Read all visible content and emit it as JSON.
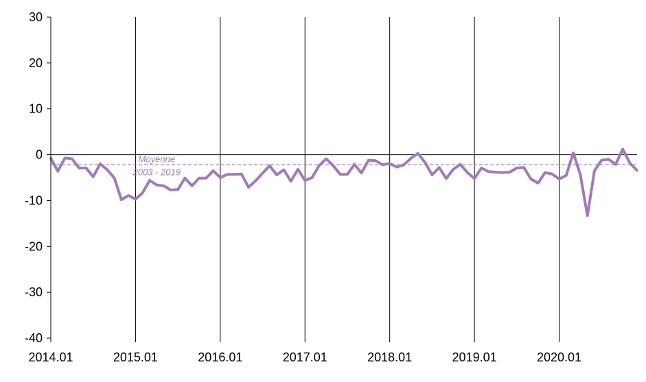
{
  "chart_data": {
    "type": "line",
    "title": "",
    "xlabel": "",
    "ylabel": "",
    "ylim": [
      -40,
      30
    ],
    "yticks": [
      30,
      20,
      10,
      0,
      -10,
      -20,
      -30,
      -40
    ],
    "x_start": "2014.01",
    "x_end": "2020.12",
    "xtick_labels": [
      "2014.01",
      "2015.01",
      "2016.01",
      "2017.01",
      "2018.01",
      "2019.01",
      "2020.01"
    ],
    "grid": "vertical lines at each January",
    "legend": "none",
    "series": [
      {
        "color": "#a17ab9",
        "x": [
          "2014.01",
          "2014.02",
          "2014.03",
          "2014.04",
          "2014.05",
          "2014.06",
          "2014.07",
          "2014.08",
          "2014.09",
          "2014.10",
          "2014.11",
          "2014.12",
          "2015.01",
          "2015.02",
          "2015.03",
          "2015.04",
          "2015.05",
          "2015.06",
          "2015.07",
          "2015.08",
          "2015.09",
          "2015.10",
          "2015.11",
          "2015.12",
          "2016.01",
          "2016.02",
          "2016.03",
          "2016.04",
          "2016.05",
          "2016.06",
          "2016.07",
          "2016.08",
          "2016.09",
          "2016.10",
          "2016.11",
          "2016.12",
          "2017.01",
          "2017.02",
          "2017.03",
          "2017.04",
          "2017.05",
          "2017.06",
          "2017.07",
          "2017.08",
          "2017.09",
          "2017.10",
          "2017.11",
          "2017.12",
          "2018.01",
          "2018.02",
          "2018.03",
          "2018.04",
          "2018.05",
          "2018.06",
          "2018.07",
          "2018.08",
          "2018.09",
          "2018.10",
          "2018.11",
          "2018.12",
          "2019.01",
          "2019.02",
          "2019.03",
          "2019.04",
          "2019.05",
          "2019.06",
          "2019.07",
          "2019.08",
          "2019.09",
          "2019.10",
          "2019.11",
          "2019.12",
          "2020.01",
          "2020.02",
          "2020.03",
          "2020.04",
          "2020.05",
          "2020.06",
          "2020.07",
          "2020.08",
          "2020.09",
          "2020.10",
          "2020.11",
          "2020.12"
        ],
        "y": [
          -0.8,
          -3.6,
          -0.7,
          -0.9,
          -2.9,
          -2.9,
          -4.8,
          -2.0,
          -3.3,
          -5.1,
          -9.8,
          -8.9,
          -9.7,
          -8.3,
          -5.6,
          -6.6,
          -6.8,
          -7.7,
          -7.6,
          -5.1,
          -6.8,
          -5.1,
          -5.1,
          -3.5,
          -5.0,
          -4.3,
          -4.3,
          -4.2,
          -7.1,
          -5.7,
          -4.0,
          -2.4,
          -4.4,
          -3.3,
          -5.8,
          -3.2,
          -5.6,
          -5.0,
          -2.4,
          -0.9,
          -2.4,
          -4.3,
          -4.3,
          -2.1,
          -4.0,
          -1.2,
          -1.3,
          -2.2,
          -1.9,
          -2.7,
          -2.2,
          -0.8,
          0.3,
          -1.7,
          -4.4,
          -2.8,
          -5.2,
          -3.2,
          -2.1,
          -3.9,
          -5.2,
          -2.9,
          -3.7,
          -3.8,
          -3.9,
          -3.8,
          -2.9,
          -2.8,
          -5.3,
          -6.2,
          -3.9,
          -4.2,
          -5.3,
          -4.5,
          0.4,
          -4.4,
          -13.3,
          -3.5,
          -1.2,
          -1.0,
          -2.1,
          1.2,
          -1.8,
          -3.4
        ]
      }
    ],
    "reference_line": {
      "value": -2.2,
      "color": "#a17ab9",
      "label_line1": "Moyenne",
      "label_line2": "2003 - 2019"
    }
  }
}
